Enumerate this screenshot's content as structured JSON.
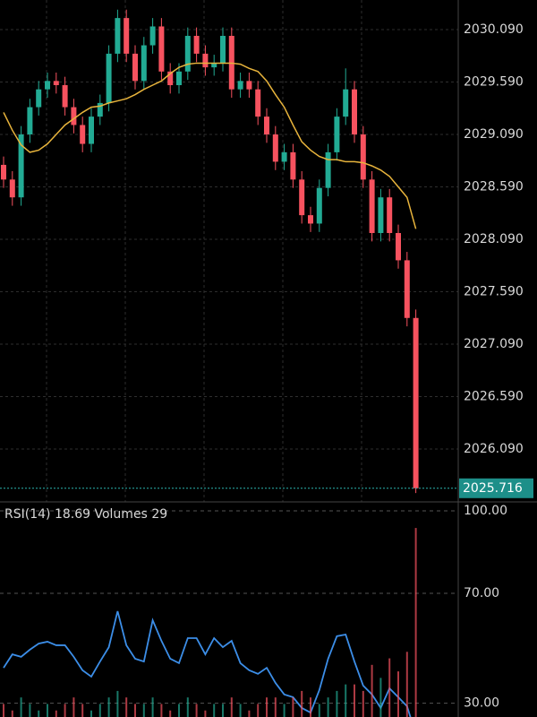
{
  "chart_data": [
    {
      "type": "candlestick",
      "open": [
        2028.8,
        2028.66,
        2028.49,
        2029.09,
        2029.35,
        2029.52,
        2029.6,
        2029.56,
        2029.35,
        2029.18,
        2029.0,
        2029.26,
        2029.39,
        2029.86,
        2030.2,
        2029.86,
        2029.6,
        2029.94,
        2030.12,
        2029.69,
        2029.56,
        2029.69,
        2030.03,
        2029.86,
        2029.73,
        2029.77,
        2030.03,
        2029.52,
        2029.6,
        2029.52,
        2029.26,
        2029.09,
        2028.83,
        2028.92,
        2028.66,
        2028.32,
        2028.24,
        2028.58,
        2028.92,
        2029.26,
        2029.52,
        2029.09,
        2028.66,
        2028.15,
        2028.49,
        2028.15,
        2027.89,
        2027.34
      ],
      "high": [
        2028.88,
        2028.74,
        2029.17,
        2029.43,
        2029.6,
        2029.68,
        2029.68,
        2029.64,
        2029.43,
        2029.26,
        2029.34,
        2029.47,
        2029.94,
        2030.28,
        2030.28,
        2029.94,
        2030.02,
        2030.2,
        2030.2,
        2029.77,
        2029.77,
        2030.11,
        2030.11,
        2029.94,
        2029.85,
        2030.11,
        2030.11,
        2029.68,
        2029.68,
        2029.6,
        2029.34,
        2029.17,
        2029.0,
        2029.0,
        2028.74,
        2028.4,
        2028.66,
        2029.0,
        2029.34,
        2029.72,
        2029.6,
        2029.17,
        2028.74,
        2028.57,
        2028.57,
        2028.23,
        2027.97,
        2027.42
      ],
      "low": [
        2028.58,
        2028.41,
        2028.41,
        2029.01,
        2029.27,
        2029.44,
        2029.48,
        2029.27,
        2029.1,
        2028.92,
        2028.92,
        2029.18,
        2029.31,
        2029.78,
        2029.78,
        2029.52,
        2029.52,
        2029.86,
        2029.61,
        2029.48,
        2029.48,
        2029.61,
        2029.78,
        2029.65,
        2029.65,
        2029.69,
        2029.44,
        2029.44,
        2029.44,
        2029.18,
        2029.01,
        2028.75,
        2028.75,
        2028.58,
        2028.24,
        2028.16,
        2028.16,
        2028.5,
        2028.84,
        2029.18,
        2029.01,
        2028.58,
        2028.07,
        2028.07,
        2028.07,
        2027.81,
        2027.26,
        2025.67
      ],
      "close": [
        2028.66,
        2028.49,
        2029.09,
        2029.35,
        2029.52,
        2029.6,
        2029.56,
        2029.35,
        2029.18,
        2029.0,
        2029.26,
        2029.39,
        2029.86,
        2030.2,
        2029.86,
        2029.6,
        2029.94,
        2030.12,
        2029.69,
        2029.56,
        2029.69,
        2030.03,
        2029.86,
        2029.73,
        2029.77,
        2030.03,
        2029.52,
        2029.6,
        2029.52,
        2029.26,
        2029.09,
        2028.83,
        2028.92,
        2028.66,
        2028.32,
        2028.24,
        2028.58,
        2028.92,
        2029.26,
        2029.52,
        2029.09,
        2028.66,
        2028.15,
        2028.49,
        2028.15,
        2027.89,
        2027.34,
        2025.716
      ],
      "up_color": "#22ab94",
      "down_color": "#f7525f",
      "ma": {
        "color": "#e8b43c",
        "values": [
          2029.3,
          2029.13,
          2028.99,
          2028.92,
          2028.94,
          2029.0,
          2029.09,
          2029.18,
          2029.24,
          2029.3,
          2029.35,
          2029.36,
          2029.39,
          2029.41,
          2029.43,
          2029.47,
          2029.52,
          2029.56,
          2029.6,
          2029.67,
          2029.73,
          2029.76,
          2029.77,
          2029.77,
          2029.77,
          2029.77,
          2029.77,
          2029.76,
          2029.72,
          2029.69,
          2029.6,
          2029.47,
          2029.35,
          2029.18,
          2029.02,
          2028.94,
          2028.88,
          2028.85,
          2028.85,
          2028.83,
          2028.83,
          2028.82,
          2028.79,
          2028.75,
          2028.69,
          2028.59,
          2028.49,
          2028.19
        ]
      },
      "ylim": [
        2025.586,
        2030.372
      ],
      "yticks": [
        {
          "value": 2030.09,
          "label": "2030.090"
        },
        {
          "value": 2029.59,
          "label": "2029.590"
        },
        {
          "value": 2029.09,
          "label": "2029.090"
        },
        {
          "value": 2028.59,
          "label": "2028.590"
        },
        {
          "value": 2028.09,
          "label": "2028.090"
        },
        {
          "value": 2027.59,
          "label": "2027.590"
        },
        {
          "value": 2027.09,
          "label": "2027.090"
        },
        {
          "value": 2026.59,
          "label": "2026.590"
        },
        {
          "value": 2026.09,
          "label": "2026.090"
        }
      ],
      "grid": true
    },
    {
      "type": "line",
      "series": [
        {
          "name": "RSI(14)",
          "color": "#3c8ee8",
          "values": [
            42.9,
            47.8,
            46.9,
            49.5,
            51.7,
            52.4,
            51.1,
            51.1,
            46.9,
            42.0,
            39.7,
            45.2,
            50.4,
            63.5,
            51.1,
            46.2,
            45.2,
            60.2,
            52.7,
            46.2,
            44.6,
            53.7,
            53.7,
            47.8,
            53.7,
            50.4,
            52.7,
            44.6,
            42.0,
            40.7,
            42.9,
            37.4,
            33.2,
            32.2,
            28.3,
            26.6,
            34.8,
            46.2,
            54.4,
            55.0,
            45.2,
            36.4,
            33.2,
            28.3,
            35.4,
            32.2,
            28.9,
            18.69
          ]
        },
        {
          "name": "Volumes",
          "axis": "y2",
          "values": [
            2,
            1,
            3,
            2,
            1,
            2,
            1,
            2,
            3,
            2,
            1,
            2,
            3,
            4,
            3,
            2,
            2,
            3,
            2,
            1,
            2,
            3,
            2,
            1,
            2,
            2,
            3,
            2,
            1,
            2,
            3,
            3,
            2,
            3,
            4,
            3,
            2,
            3,
            4,
            5,
            5,
            4,
            8,
            6,
            9,
            7,
            10,
            29
          ]
        }
      ],
      "ylim": [
        25,
        103.26
      ],
      "yticks": [
        {
          "value": 100,
          "label": "100.00"
        },
        {
          "value": 70,
          "label": "70.00"
        },
        {
          "value": 30,
          "label": "30.00"
        }
      ],
      "y2lim": [
        0,
        33
      ]
    }
  ]
}
